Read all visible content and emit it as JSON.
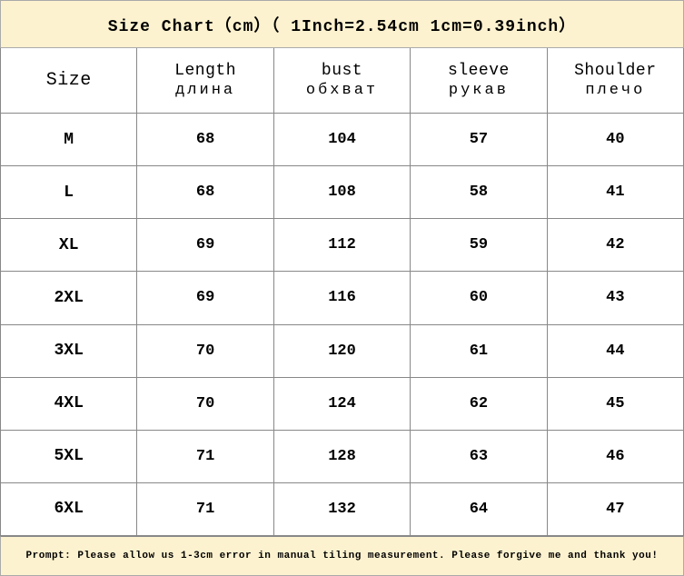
{
  "title": "Size Chart（cm）（ 1Inch=2.54cm 1cm=0.39inch）",
  "columns": [
    {
      "primary": "Size",
      "sub": ""
    },
    {
      "primary": "Length",
      "sub": "длина"
    },
    {
      "primary": "bust",
      "sub": "обхват"
    },
    {
      "primary": "sleeve",
      "sub": "рукав"
    },
    {
      "primary": "Shoulder",
      "sub": "плечо"
    }
  ],
  "rows": [
    {
      "size": "M",
      "length": "68",
      "bust": "104",
      "sleeve": "57",
      "shoulder": "40"
    },
    {
      "size": "L",
      "length": "68",
      "bust": "108",
      "sleeve": "58",
      "shoulder": "41"
    },
    {
      "size": "XL",
      "length": "69",
      "bust": "112",
      "sleeve": "59",
      "shoulder": "42"
    },
    {
      "size": "2XL",
      "length": "69",
      "bust": "116",
      "sleeve": "60",
      "shoulder": "43"
    },
    {
      "size": "3XL",
      "length": "70",
      "bust": "120",
      "sleeve": "61",
      "shoulder": "44"
    },
    {
      "size": "4XL",
      "length": "70",
      "bust": "124",
      "sleeve": "62",
      "shoulder": "45"
    },
    {
      "size": "5XL",
      "length": "71",
      "bust": "128",
      "sleeve": "63",
      "shoulder": "46"
    },
    {
      "size": "6XL",
      "length": "71",
      "bust": "132",
      "sleeve": "64",
      "shoulder": "47"
    }
  ],
  "footer": "Prompt: Please allow us 1-3cm error in manual tiling measurement. Please forgive me and thank you!",
  "colors": {
    "header_bg": "#fdf2cf",
    "border": "#888888",
    "text": "#000000",
    "background": "#ffffff"
  },
  "typography": {
    "title_fontsize": 18,
    "header_fontsize": 18,
    "data_fontsize": 17,
    "footer_fontsize": 11,
    "font_family": "Courier New"
  }
}
